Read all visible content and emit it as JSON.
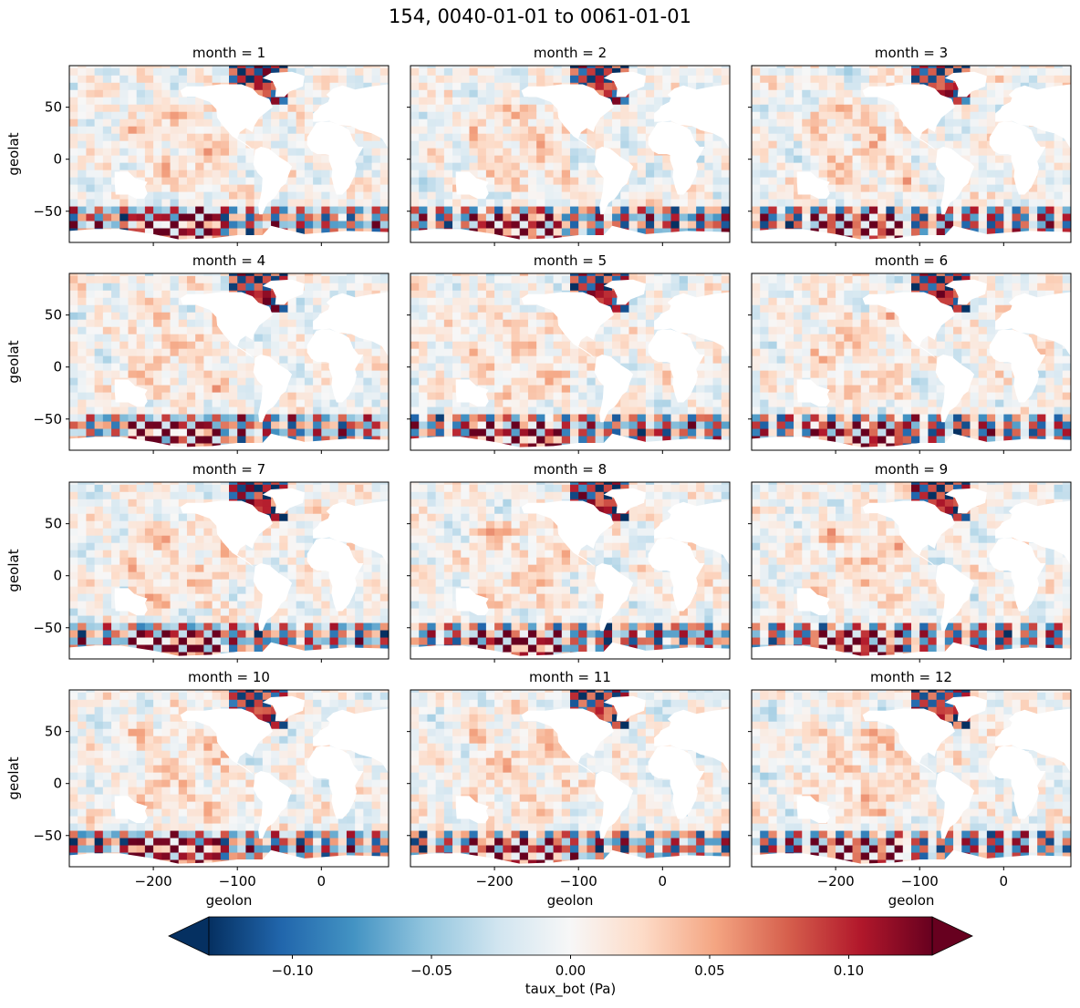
{
  "figure": {
    "suptitle": "154, 0040-01-01 to 0061-01-01"
  },
  "chart_data": {
    "type": "heatmap",
    "variable": "taux_bot",
    "panels": [
      {
        "title": "month = 1"
      },
      {
        "title": "month = 2"
      },
      {
        "title": "month = 3"
      },
      {
        "title": "month = 4"
      },
      {
        "title": "month = 5"
      },
      {
        "title": "month = 6"
      },
      {
        "title": "month = 7"
      },
      {
        "title": "month = 8"
      },
      {
        "title": "month = 9"
      },
      {
        "title": "month = 10"
      },
      {
        "title": "month = 11"
      },
      {
        "title": "month = 12"
      }
    ],
    "xlabel": "geolon",
    "ylabel": "geolat",
    "xlim": [
      -300,
      80
    ],
    "ylim": [
      -80,
      90
    ],
    "xticks": [
      -200,
      -100,
      0
    ],
    "xtick_labels": [
      "−200",
      "−100",
      "0"
    ],
    "yticks": [
      -50,
      0,
      50
    ],
    "ytick_labels": [
      "−50",
      "0",
      "50"
    ],
    "colorbar": {
      "label": "taux_bot (Pa)",
      "vmin": -0.13,
      "vmax": 0.13,
      "extend": "both",
      "colormap": "RdBu_r",
      "ticks": [
        -0.1,
        -0.05,
        0.0,
        0.05,
        0.1
      ],
      "tick_labels": [
        "−0.10",
        "−0.05",
        "0.00",
        "0.05",
        "0.10"
      ],
      "colors": [
        "#053061",
        "#2166ac",
        "#4393c3",
        "#92c5de",
        "#d1e5f0",
        "#f7f7f7",
        "#fddbc7",
        "#f4a582",
        "#d6604d",
        "#b2182b",
        "#67001f"
      ]
    },
    "grid": false,
    "land_color": "#ffffff"
  }
}
